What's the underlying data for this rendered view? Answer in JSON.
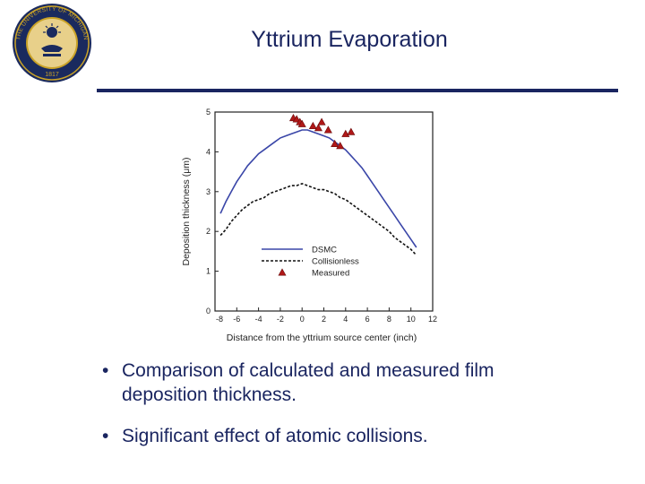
{
  "slide": {
    "title": "Yttrium Evaporation",
    "seal": {
      "text": "THE UNIVERSITY OF MICHIGAN",
      "year": "1817",
      "colors": {
        "navy": "#1a2a5e",
        "gold": "#c9a227"
      }
    },
    "accent_color": "#1a2560",
    "bullets": [
      "Comparison of calculated and measured film deposition thickness.",
      "Significant effect of atomic collisions."
    ]
  },
  "chart_data": {
    "type": "line",
    "title": "",
    "xlabel": "Distance from the yttrium source center (inch)",
    "ylabel": "Deposition thickness (μm)",
    "xlim": [
      -8,
      12
    ],
    "ylim": [
      0,
      5
    ],
    "x_ticks": [
      -8,
      -6,
      -4,
      -2,
      0,
      2,
      4,
      6,
      8,
      10,
      12
    ],
    "y_ticks": [
      0,
      1,
      2,
      3,
      4,
      5
    ],
    "grid": false,
    "legend": {
      "position": "bottom-center",
      "entries": [
        "DSMC",
        "Collisionless",
        "Measured"
      ]
    },
    "series": [
      {
        "name": "DSMC",
        "style": "solid-line",
        "color": "#3a46a8",
        "x": [
          -7.5,
          -7,
          -6.5,
          -6,
          -5.5,
          -5,
          -4.5,
          -4,
          -3.5,
          -3,
          -2.5,
          -2,
          -1.5,
          -1,
          -0.5,
          0,
          0.5,
          1,
          1.5,
          2,
          2.5,
          3,
          3.5,
          4,
          4.5,
          5,
          5.5,
          6,
          6.5,
          7,
          7.5,
          8,
          8.5,
          9,
          9.5,
          10,
          10.5
        ],
        "y": [
          2.45,
          2.75,
          3.0,
          3.25,
          3.45,
          3.65,
          3.8,
          3.95,
          4.05,
          4.15,
          4.25,
          4.35,
          4.4,
          4.45,
          4.5,
          4.55,
          4.55,
          4.5,
          4.45,
          4.4,
          4.35,
          4.25,
          4.15,
          4.05,
          3.9,
          3.75,
          3.6,
          3.4,
          3.2,
          3.0,
          2.8,
          2.6,
          2.4,
          2.2,
          2.0,
          1.8,
          1.6
        ]
      },
      {
        "name": "Collisionless",
        "style": "dashed-line",
        "color": "#111111",
        "x": [
          -7.5,
          -7,
          -6.5,
          -6,
          -5.5,
          -5,
          -4.5,
          -4,
          -3.5,
          -3,
          -2.5,
          -2,
          -1.5,
          -1,
          -0.5,
          0,
          0.5,
          1,
          1.5,
          2,
          2.5,
          3,
          3.5,
          4,
          4.5,
          5,
          5.5,
          6,
          6.5,
          7,
          7.5,
          8,
          8.5,
          9,
          9.5,
          10,
          10.5
        ],
        "y": [
          1.9,
          2.05,
          2.25,
          2.4,
          2.55,
          2.65,
          2.75,
          2.8,
          2.85,
          2.95,
          3.0,
          3.05,
          3.1,
          3.15,
          3.15,
          3.2,
          3.15,
          3.1,
          3.05,
          3.05,
          3.0,
          2.95,
          2.85,
          2.8,
          2.7,
          2.6,
          2.5,
          2.4,
          2.3,
          2.2,
          2.1,
          2.0,
          1.85,
          1.75,
          1.65,
          1.55,
          1.4
        ]
      },
      {
        "name": "Measured",
        "style": "triangle-markers",
        "color": "#b01818",
        "x": [
          -0.8,
          -0.5,
          -0.2,
          0.0,
          1.0,
          1.5,
          1.8,
          2.4,
          3.0,
          3.5,
          4.0,
          4.5
        ],
        "y": [
          4.85,
          4.82,
          4.75,
          4.7,
          4.65,
          4.6,
          4.75,
          4.55,
          4.2,
          4.15,
          4.45,
          4.5
        ]
      }
    ]
  }
}
